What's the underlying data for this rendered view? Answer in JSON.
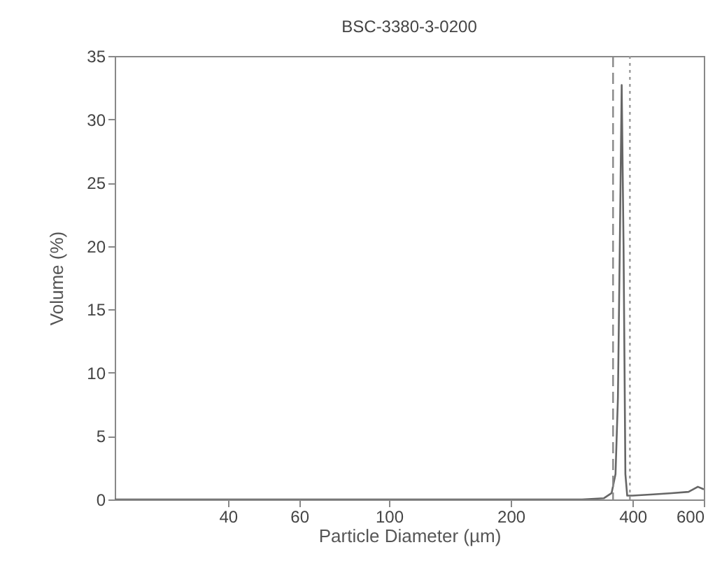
{
  "chart_data": {
    "type": "line",
    "title": "BSC-3380-3-0200",
    "xlabel": "Particle Diameter (µm)",
    "ylabel": "Volume (%)",
    "log": "x",
    "xlim": [
      21,
      600
    ],
    "xticks": [
      40,
      60,
      100,
      200,
      400,
      600
    ],
    "ylim": [
      0,
      35
    ],
    "yticks": [
      0,
      5,
      10,
      15,
      20,
      25,
      30,
      35
    ],
    "grid": false,
    "series": [
      {
        "color": "#666666",
        "x": [
          21,
          300,
          340,
          355,
          363,
          368,
          372,
          376,
          380,
          384,
          388,
          400,
          450,
          500,
          550,
          580,
          600
        ],
        "values": [
          0,
          0,
          0.1,
          0.5,
          2,
          8,
          20,
          32.7,
          20,
          2,
          0.3,
          0.3,
          0.4,
          0.5,
          0.6,
          1,
          0.8
        ]
      }
    ],
    "ref_lines": [
      {
        "axis": "x",
        "value": 358,
        "color": "#888888",
        "line_style": "dashed"
      },
      {
        "axis": "x",
        "value": 394,
        "color": "#999999",
        "line_style": "dotted"
      }
    ]
  }
}
